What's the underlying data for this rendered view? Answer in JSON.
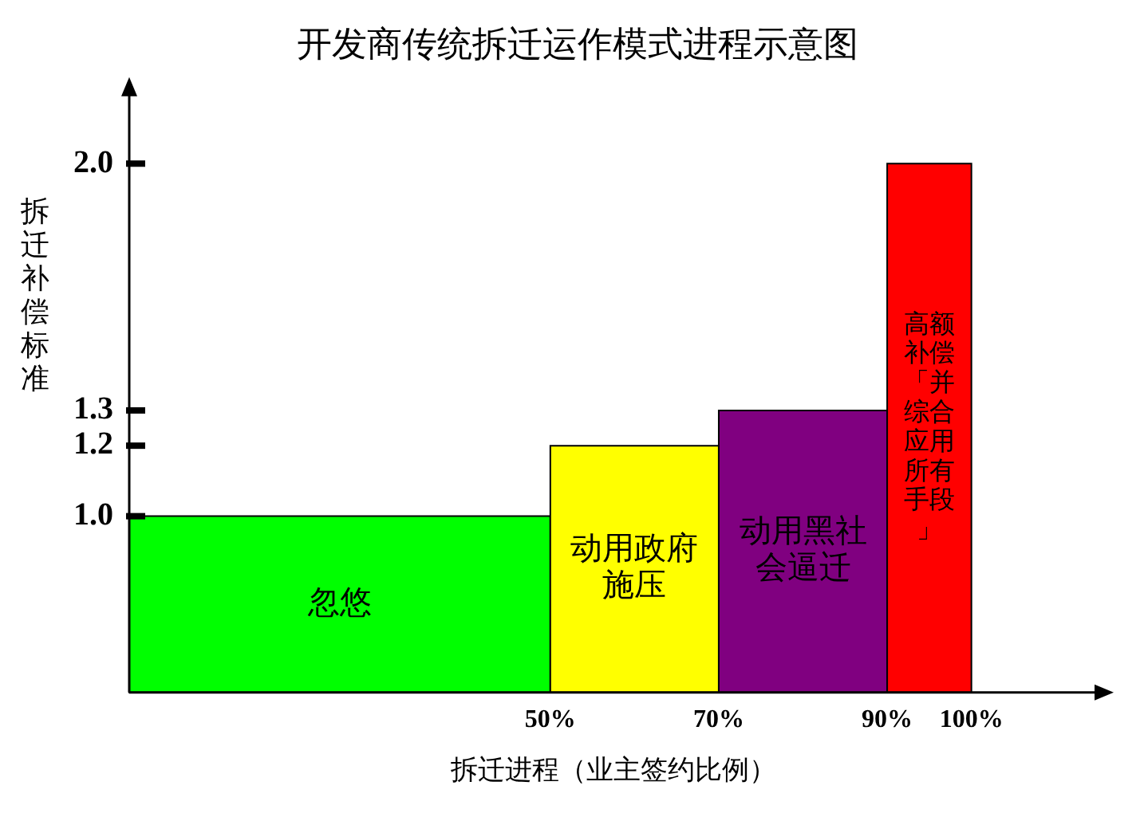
{
  "chart_data": {
    "type": "histogram",
    "title": "开发商传统拆迁运作模式进程示意图",
    "xlabel": "拆迁进程（业主签约比例）",
    "ylabel": "拆迁补偿标准",
    "bins": [
      0,
      50,
      70,
      90,
      100
    ],
    "values": [
      1.0,
      1.2,
      1.3,
      2.0
    ],
    "colors": [
      "#00ff00",
      "#ffff00",
      "#800080",
      "#ff0000"
    ],
    "xlim": [
      0,
      115
    ],
    "xticks": [
      {
        "value": 50,
        "label": "50%"
      },
      {
        "value": 70,
        "label": "70%"
      },
      {
        "value": 90,
        "label": "90%"
      },
      {
        "value": 100,
        "label": "100%"
      }
    ],
    "ylim": [
      0.5,
      2.2
    ],
    "yticks": [
      {
        "value": 1.0,
        "label": "1.0"
      },
      {
        "value": 1.2,
        "label": "1.2"
      },
      {
        "value": 1.3,
        "label": "1.3"
      },
      {
        "value": 2.0,
        "label": "2.0"
      }
    ],
    "annotations": [
      "忽悠",
      "动用政府施压",
      "动用黑社会逼迁",
      "高额补偿「并综合应用所有手段」"
    ]
  }
}
